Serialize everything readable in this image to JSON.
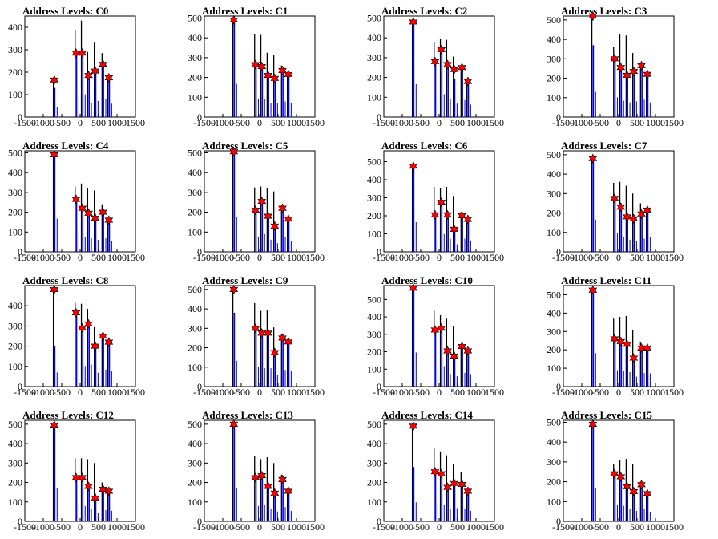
{
  "colors": {
    "black_bar": "#000000",
    "blue_bar": "#0000ff",
    "marker": "#ff0000",
    "marker_edge": "#000000"
  },
  "chart_data": [
    {
      "title": "Address Levels: C0",
      "type": "bar",
      "xlim": [
        -1500,
        1500
      ],
      "ylim": [
        0,
        450
      ],
      "yticks": [
        0,
        100,
        200,
        300,
        400
      ],
      "xticks": [
        -1500,
        -1000,
        -500,
        0,
        500,
        1000,
        1500
      ],
      "bars": [
        [
          -700,
          155,
          130
        ],
        [
          -110,
          385,
          290
        ],
        [
          60,
          430,
          290
        ],
        [
          230,
          290,
          175
        ],
        [
          410,
          335,
          205
        ],
        [
          620,
          285,
          235
        ],
        [
          780,
          180,
          170
        ]
      ],
      "peaks": {
        "x": [
          -700,
          -110,
          60,
          230,
          410,
          620,
          780
        ],
        "y": [
          165,
          285,
          285,
          185,
          205,
          235,
          175
        ]
      }
    },
    {
      "title": "Address Levels: C1",
      "type": "bar",
      "xlim": [
        -1500,
        1500
      ],
      "ylim": [
        0,
        510
      ],
      "yticks": [
        0,
        100,
        200,
        300,
        400,
        500
      ],
      "xticks": [
        -1500,
        -1000,
        -500,
        0,
        500,
        1000,
        1500
      ],
      "bars": [
        [
          -700,
          485,
          480
        ],
        [
          -110,
          420,
          265
        ],
        [
          60,
          415,
          255
        ],
        [
          230,
          325,
          205
        ],
        [
          410,
          315,
          200
        ],
        [
          620,
          260,
          225
        ],
        [
          780,
          215,
          210
        ]
      ],
      "peaks": {
        "x": [
          -700,
          -110,
          60,
          230,
          410,
          620,
          780
        ],
        "y": [
          490,
          265,
          255,
          210,
          195,
          235,
          215
        ]
      }
    },
    {
      "title": "Address Levels: C2",
      "type": "bar",
      "xlim": [
        -1500,
        1500
      ],
      "ylim": [
        0,
        510
      ],
      "yticks": [
        0,
        100,
        200,
        300,
        400,
        500
      ],
      "xticks": [
        -1500,
        -1000,
        -500,
        0,
        500,
        1000,
        1500
      ],
      "bars": [
        [
          -700,
          480,
          475
        ],
        [
          -110,
          380,
          280
        ],
        [
          60,
          395,
          330
        ],
        [
          230,
          390,
          265
        ],
        [
          410,
          305,
          195
        ],
        [
          620,
          255,
          245
        ],
        [
          780,
          185,
          180
        ]
      ],
      "peaks": {
        "x": [
          -700,
          -110,
          60,
          230,
          410,
          620,
          780
        ],
        "y": [
          480,
          280,
          340,
          265,
          240,
          250,
          180
        ]
      }
    },
    {
      "title": "Address Levels: C3",
      "type": "bar",
      "xlim": [
        -1500,
        1500
      ],
      "ylim": [
        0,
        520
      ],
      "yticks": [
        0,
        100,
        200,
        300,
        400,
        500
      ],
      "xticks": [
        -1500,
        -1000,
        -500,
        0,
        500,
        1000,
        1500
      ],
      "bars": [
        [
          -700,
          520,
          370
        ],
        [
          -110,
          360,
          290
        ],
        [
          60,
          425,
          240
        ],
        [
          230,
          420,
          215
        ],
        [
          410,
          330,
          230
        ],
        [
          620,
          280,
          255
        ],
        [
          780,
          225,
          215
        ]
      ],
      "peaks": {
        "x": [
          -700,
          -110,
          60,
          230,
          410,
          620,
          780
        ],
        "y": [
          520,
          300,
          255,
          215,
          235,
          265,
          220
        ]
      }
    },
    {
      "title": "Address Levels: C4",
      "type": "bar",
      "xlim": [
        -1500,
        1500
      ],
      "ylim": [
        0,
        510
      ],
      "yticks": [
        0,
        100,
        200,
        300,
        400,
        500
      ],
      "xticks": [
        -1500,
        -1000,
        -500,
        0,
        500,
        1000,
        1500
      ],
      "bars": [
        [
          -700,
          485,
          480
        ],
        [
          -110,
          330,
          265
        ],
        [
          60,
          345,
          210
        ],
        [
          230,
          320,
          195
        ],
        [
          410,
          310,
          175
        ],
        [
          620,
          240,
          195
        ],
        [
          780,
          160,
          155
        ]
      ],
      "peaks": {
        "x": [
          -700,
          -110,
          60,
          230,
          410,
          620,
          780
        ],
        "y": [
          490,
          265,
          220,
          195,
          170,
          200,
          160
        ]
      }
    },
    {
      "title": "Address Levels: C5",
      "type": "bar",
      "xlim": [
        -1500,
        1500
      ],
      "ylim": [
        0,
        510
      ],
      "yticks": [
        0,
        100,
        200,
        300,
        400,
        500
      ],
      "xticks": [
        -1500,
        -1000,
        -500,
        0,
        500,
        1000,
        1500
      ],
      "bars": [
        [
          -700,
          505,
          500
        ],
        [
          -110,
          325,
          210
        ],
        [
          60,
          330,
          255
        ],
        [
          230,
          320,
          175
        ],
        [
          410,
          305,
          125
        ],
        [
          620,
          235,
          220
        ],
        [
          780,
          165,
          160
        ]
      ],
      "peaks": {
        "x": [
          -700,
          -110,
          60,
          230,
          410,
          620,
          780
        ],
        "y": [
          505,
          210,
          255,
          180,
          130,
          220,
          165
        ]
      }
    },
    {
      "title": "Address Levels: C6",
      "type": "bar",
      "xlim": [
        -1500,
        1500
      ],
      "ylim": [
        0,
        560
      ],
      "yticks": [
        0,
        100,
        200,
        300,
        400,
        500
      ],
      "xticks": [
        -1500,
        -1000,
        -500,
        0,
        500,
        1000,
        1500
      ],
      "bars": [
        [
          -700,
          475,
          470
        ],
        [
          -110,
          360,
          205
        ],
        [
          60,
          355,
          280
        ],
        [
          230,
          360,
          205
        ],
        [
          410,
          310,
          120
        ],
        [
          620,
          220,
          210
        ],
        [
          780,
          185,
          180
        ]
      ],
      "peaks": {
        "x": [
          -700,
          -110,
          60,
          230,
          410,
          620,
          780
        ],
        "y": [
          475,
          205,
          275,
          205,
          125,
          200,
          180
        ]
      }
    },
    {
      "title": "Address Levels: C7",
      "type": "bar",
      "xlim": [
        -1500,
        1500
      ],
      "ylim": [
        0,
        520
      ],
      "yticks": [
        0,
        100,
        200,
        300,
        400,
        500
      ],
      "xticks": [
        -1500,
        -1000,
        -500,
        0,
        500,
        1000,
        1500
      ],
      "bars": [
        [
          -700,
          480,
          475
        ],
        [
          -110,
          355,
          270
        ],
        [
          60,
          360,
          225
        ],
        [
          230,
          340,
          180
        ],
        [
          410,
          300,
          165
        ],
        [
          620,
          250,
          195
        ],
        [
          780,
          220,
          215
        ]
      ],
      "peaks": {
        "x": [
          -700,
          -110,
          60,
          230,
          410,
          620,
          780
        ],
        "y": [
          480,
          275,
          230,
          180,
          170,
          195,
          215
        ]
      }
    },
    {
      "title": "Address Levels: C8",
      "type": "bar",
      "xlim": [
        -1500,
        1500
      ],
      "ylim": [
        0,
        500
      ],
      "yticks": [
        0,
        100,
        200,
        300,
        400
      ],
      "xticks": [
        -1500,
        -1000,
        -500,
        0,
        500,
        1000,
        1500
      ],
      "bars": [
        [
          -700,
          480,
          200
        ],
        [
          -110,
          415,
          365
        ],
        [
          60,
          410,
          290
        ],
        [
          230,
          385,
          310
        ],
        [
          410,
          295,
          195
        ],
        [
          620,
          265,
          240
        ],
        [
          780,
          220,
          215
        ]
      ],
      "peaks": {
        "x": [
          -700,
          -110,
          60,
          230,
          410,
          620,
          780
        ],
        "y": [
          480,
          365,
          290,
          310,
          200,
          250,
          220
        ]
      }
    },
    {
      "title": "Address Levels: C9",
      "type": "bar",
      "xlim": [
        -1500,
        1500
      ],
      "ylim": [
        0,
        520
      ],
      "yticks": [
        0,
        100,
        200,
        300,
        400,
        500
      ],
      "xticks": [
        -1500,
        -1000,
        -500,
        0,
        500,
        1000,
        1500
      ],
      "bars": [
        [
          -700,
          500,
          380
        ],
        [
          -110,
          430,
          295
        ],
        [
          60,
          390,
          270
        ],
        [
          230,
          395,
          270
        ],
        [
          410,
          305,
          175
        ],
        [
          620,
          270,
          245
        ],
        [
          780,
          230,
          225
        ]
      ],
      "peaks": {
        "x": [
          -700,
          -110,
          60,
          230,
          410,
          620,
          780
        ],
        "y": [
          500,
          300,
          275,
          275,
          175,
          250,
          230
        ]
      }
    },
    {
      "title": "Address Levels: C10",
      "type": "bar",
      "xlim": [
        -1500,
        1500
      ],
      "ylim": [
        0,
        580
      ],
      "yticks": [
        0,
        100,
        200,
        300,
        400,
        500
      ],
      "xticks": [
        -1500,
        -1000,
        -500,
        0,
        500,
        1000,
        1500
      ],
      "bars": [
        [
          -700,
          565,
          560
        ],
        [
          -110,
          435,
          320
        ],
        [
          60,
          410,
          335
        ],
        [
          230,
          390,
          205
        ],
        [
          410,
          350,
          170
        ],
        [
          620,
          240,
          225
        ],
        [
          780,
          210,
          205
        ]
      ],
      "peaks": {
        "x": [
          -700,
          -110,
          60,
          230,
          410,
          620,
          780
        ],
        "y": [
          565,
          325,
          335,
          205,
          175,
          230,
          205
        ]
      }
    },
    {
      "title": "Address Levels: C11",
      "type": "bar",
      "xlim": [
        -1500,
        1500
      ],
      "ylim": [
        0,
        550
      ],
      "yticks": [
        0,
        100,
        200,
        300,
        400,
        500
      ],
      "xticks": [
        -1500,
        -1000,
        -500,
        0,
        500,
        1000,
        1500
      ],
      "bars": [
        [
          -700,
          525,
          520
        ],
        [
          -110,
          370,
          255
        ],
        [
          60,
          380,
          240
        ],
        [
          230,
          385,
          225
        ],
        [
          410,
          310,
          155
        ],
        [
          620,
          245,
          210
        ],
        [
          780,
          210,
          205
        ]
      ],
      "peaks": {
        "x": [
          -700,
          -110,
          60,
          230,
          410,
          620,
          780
        ],
        "y": [
          525,
          260,
          245,
          230,
          155,
          210,
          210
        ]
      }
    },
    {
      "title": "Address Levels: C12",
      "type": "bar",
      "xlim": [
        -1500,
        1500
      ],
      "ylim": [
        0,
        520
      ],
      "yticks": [
        0,
        100,
        200,
        300,
        400,
        500
      ],
      "xticks": [
        -1500,
        -1000,
        -500,
        0,
        500,
        1000,
        1500
      ],
      "bars": [
        [
          -700,
          495,
          490
        ],
        [
          -110,
          325,
          220
        ],
        [
          60,
          325,
          225
        ],
        [
          230,
          320,
          180
        ],
        [
          410,
          300,
          120
        ],
        [
          620,
          200,
          165
        ],
        [
          780,
          160,
          155
        ]
      ],
      "peaks": {
        "x": [
          -700,
          -110,
          60,
          230,
          410,
          620,
          780
        ],
        "y": [
          495,
          225,
          225,
          180,
          120,
          165,
          155
        ]
      }
    },
    {
      "title": "Address Levels: C13",
      "type": "bar",
      "xlim": [
        -1500,
        1500
      ],
      "ylim": [
        0,
        520
      ],
      "yticks": [
        0,
        100,
        200,
        300,
        400,
        500
      ],
      "xticks": [
        -1500,
        -1000,
        -500,
        0,
        500,
        1000,
        1500
      ],
      "bars": [
        [
          -700,
          500,
          495
        ],
        [
          -110,
          335,
          225
        ],
        [
          60,
          320,
          235
        ],
        [
          230,
          330,
          180
        ],
        [
          410,
          300,
          145
        ],
        [
          620,
          240,
          210
        ],
        [
          780,
          160,
          155
        ]
      ],
      "peaks": {
        "x": [
          -700,
          -110,
          60,
          230,
          410,
          620,
          780
        ],
        "y": [
          500,
          225,
          235,
          180,
          145,
          215,
          155
        ]
      }
    },
    {
      "title": "Address Levels: C14",
      "type": "bar",
      "xlim": [
        -1500,
        1500
      ],
      "ylim": [
        0,
        520
      ],
      "yticks": [
        0,
        100,
        200,
        300,
        400,
        500
      ],
      "xticks": [
        -1500,
        -1000,
        -500,
        0,
        500,
        1000,
        1500
      ],
      "bars": [
        [
          -700,
          490,
          280
        ],
        [
          -110,
          380,
          255
        ],
        [
          60,
          360,
          245
        ],
        [
          230,
          340,
          175
        ],
        [
          410,
          295,
          195
        ],
        [
          620,
          255,
          185
        ],
        [
          780,
          160,
          155
        ]
      ],
      "peaks": {
        "x": [
          -700,
          -110,
          60,
          230,
          410,
          620,
          780
        ],
        "y": [
          490,
          255,
          245,
          175,
          195,
          190,
          155
        ]
      }
    },
    {
      "title": "Address Levels: C15",
      "type": "bar",
      "xlim": [
        -1500,
        1500
      ],
      "ylim": [
        0,
        510
      ],
      "yticks": [
        0,
        100,
        200,
        300,
        400,
        500
      ],
      "xticks": [
        -1500,
        -1000,
        -500,
        0,
        500,
        1000,
        1500
      ],
      "bars": [
        [
          -700,
          490,
          485
        ],
        [
          -110,
          290,
          240
        ],
        [
          60,
          310,
          225
        ],
        [
          230,
          315,
          175
        ],
        [
          410,
          290,
          150
        ],
        [
          620,
          200,
          185
        ],
        [
          780,
          145,
          140
        ]
      ],
      "peaks": {
        "x": [
          -700,
          -110,
          60,
          230,
          410,
          620,
          780
        ],
        "y": [
          490,
          240,
          225,
          175,
          150,
          185,
          140
        ]
      }
    }
  ]
}
